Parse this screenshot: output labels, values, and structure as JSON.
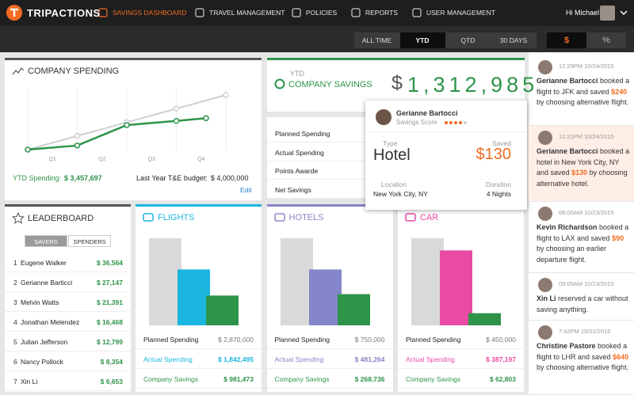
{
  "nav": {
    "logo": "TRIPACTIONS",
    "items": [
      "SAVINGS DASHBOARD",
      "TRAVEL MANAGEMENT",
      "POLICIES",
      "REPORTS",
      "USER MANAGEMENT"
    ],
    "active_item": 0,
    "user": "Hi Michael"
  },
  "filters": {
    "periods": [
      "ALL TIME",
      "YTD",
      "QTD",
      "30 DAYS"
    ],
    "active_period": 1,
    "units": [
      "$",
      "%"
    ],
    "active_unit": 0
  },
  "company_spending": {
    "title": "COMPANY SPENDING",
    "chart": {
      "type": "line",
      "xlim": [
        0,
        4
      ],
      "ylim": [
        0,
        4
      ],
      "xticks": [
        0,
        1,
        2,
        3,
        4
      ],
      "quarter_labels": [
        "Q1",
        "Q2",
        "Q3",
        "Q4"
      ],
      "series": [
        {
          "color": "#d0d0d0",
          "x": [
            0,
            1,
            2,
            3,
            4
          ],
          "values": [
            0,
            1,
            2,
            3,
            4
          ]
        },
        {
          "color": "#2e9449",
          "x": [
            0,
            1,
            2,
            3,
            3.6
          ],
          "values": [
            0,
            0.3,
            1.8,
            2.1,
            2.3
          ]
        }
      ]
    },
    "ytd_label": "YTD Spending:",
    "ytd_value": "$ 3,457,697",
    "budget_label": "Last Year T&E budget:",
    "budget_value": "$ 4,000,000",
    "edit": "Edit"
  },
  "company_savings": {
    "period": "YTD",
    "title": "COMPANY SAVINGS",
    "currency": "$",
    "value": "1,312,985"
  },
  "spending_table": {
    "rows": [
      "Planned Spending",
      "Actual Spending",
      "Points Awarde",
      "Net Savings"
    ]
  },
  "popup": {
    "name": "Gerianne Bartocci",
    "score_label": "Savings Score",
    "score": 4,
    "score_max": 5,
    "type_label": "Type",
    "type": "Hotel",
    "saved_label": "Saved",
    "saved": "$130",
    "location_label": "Location",
    "location": "New York City, NY",
    "duration_label": "Duration",
    "duration": "4 Nights"
  },
  "leaderboard": {
    "title": "LEADERBOARD",
    "tabs": [
      "SAVERS",
      "SPENDERS"
    ],
    "active_tab": 0,
    "rows": [
      {
        "rank": 1,
        "name": "Eugene Walker",
        "amount": "$ 36,564"
      },
      {
        "rank": 2,
        "name": "Gerianne Barticci",
        "amount": "$ 27,147"
      },
      {
        "rank": 3,
        "name": "Melvin Watts",
        "amount": "$ 21,391"
      },
      {
        "rank": 4,
        "name": "Jonathan Melendez",
        "amount": "$ 16,468"
      },
      {
        "rank": 5,
        "name": "Julian  Jefferson",
        "amount": "$ 12,799"
      },
      {
        "rank": 6,
        "name": "Nancy  Pollock",
        "amount": "$ 8,354"
      },
      {
        "rank": 7,
        "name": "Xin  Li",
        "amount": "$ 6,653"
      }
    ]
  },
  "cards": [
    {
      "type": "bar",
      "title": "FLIGHTS",
      "color": "#1bb6e0",
      "ylim": [
        0,
        2870000
      ],
      "labels": [
        "Planned Spending",
        "Actual Spending",
        "Company Savings"
      ],
      "colors": [
        "#d9d9d9",
        "#1bb6e0",
        "#2e9449"
      ],
      "values": [
        2870000,
        1842495,
        981473
      ],
      "value_labels": [
        "$ 2,870,000",
        "$ 1,842,495",
        "$ 981,473"
      ]
    },
    {
      "type": "bar",
      "title": "HOTELS",
      "color": "#8585c9",
      "ylim": [
        0,
        750000
      ],
      "labels": [
        "Planned Spending",
        "Actual Spending",
        "Company Savings"
      ],
      "colors": [
        "#d9d9d9",
        "#8585c9",
        "#2e9449"
      ],
      "values": [
        750000,
        481264,
        268736
      ],
      "value_labels": [
        "$ 750,000",
        "$ 481,264",
        "$ 268,736"
      ]
    },
    {
      "type": "bar",
      "title": "CAR",
      "color": "#e84aa4",
      "ylim": [
        0,
        450000
      ],
      "labels": [
        "Planned Spending",
        "Actual Spending",
        "Company Savings"
      ],
      "colors": [
        "#d9d9d9",
        "#e84aa4",
        "#2e9449"
      ],
      "values": [
        450000,
        387197,
        62803
      ],
      "value_labels": [
        "$ 450,000",
        "$ 387,197",
        "$ 62,803"
      ]
    }
  ],
  "feed": {
    "highlight": 1,
    "items": [
      {
        "time": "12:29PM 10/24/2015",
        "name": "Gerianne Bartocci",
        "text": "booked a flight to JFK and saved",
        "amount": "$240",
        "after": "by choosing alternative flight."
      },
      {
        "time": "12:21PM 10/24/2015",
        "name": "Gerianne Bartocci",
        "text": "booked a hotel in New York City, NY and saved",
        "amount": "$130",
        "after": "by choosing alternative hotel."
      },
      {
        "time": "08:00AM 10/23/2015",
        "name": "Kevin Richardson",
        "text": "booked a flight to LAX and saved",
        "amount": "$90",
        "after": "by choosing an earlier departure flight."
      },
      {
        "time": "09:00AM 10/23/2015",
        "name": "Xin Li",
        "text": "reserved a car without saving anything."
      },
      {
        "time": "7:42PM 10/22/2015",
        "name": "Christine Pastore",
        "text": "booked a flight to LHR and saved",
        "amount": "$640",
        "after": "by choosing alternative flight."
      }
    ]
  }
}
